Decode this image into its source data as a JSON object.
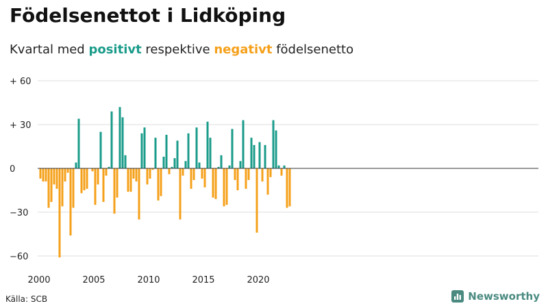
{
  "header": {
    "title": "Födelsenettot i Lidköping",
    "subtitle_prefix": "Kvartal med ",
    "subtitle_positive": "positivt",
    "subtitle_middle": " respektive ",
    "subtitle_negative": "negativt",
    "subtitle_suffix": " födelsenetto"
  },
  "footer": {
    "source": "Källa: SCB",
    "brand": "Newsworthy",
    "brand_icon": "bar-chart-logo-icon"
  },
  "colors": {
    "positive": "#1a9b8a",
    "negative": "#f5a01a",
    "grid": "#dddddd",
    "zero_line": "#333333",
    "brand": "#4a8a80"
  },
  "chart_data": {
    "type": "bar",
    "ylim": [
      -64,
      64
    ],
    "y_ticks": [
      {
        "value": 60,
        "label": "+ 60"
      },
      {
        "value": 30,
        "label": "+ 30"
      },
      {
        "value": 0,
        "label": "0"
      },
      {
        "value": -30,
        "label": "−30"
      },
      {
        "value": -60,
        "label": "−60"
      }
    ],
    "x_ticks": [
      {
        "value": 2000,
        "label": "2000"
      },
      {
        "value": 2005,
        "label": "2005"
      },
      {
        "value": 2010,
        "label": "2010"
      },
      {
        "value": 2015,
        "label": "2015"
      },
      {
        "value": 2020,
        "label": "2020"
      }
    ],
    "x_start": "2000",
    "grid": true,
    "values": [
      -7,
      -9,
      -9,
      -27,
      -23,
      -11,
      -14,
      -61,
      -26,
      -9,
      -3,
      -46,
      -27,
      4,
      34,
      -17,
      -15,
      -14,
      0,
      -2,
      -25,
      -11,
      25,
      -23,
      -5,
      1,
      39,
      -31,
      -20,
      42,
      35,
      9,
      -16,
      -16,
      -7,
      -9,
      -35,
      24,
      28,
      -11,
      -7,
      -1,
      21,
      -22,
      -19,
      8,
      23,
      -4,
      1,
      7,
      19,
      -35,
      -5,
      5,
      24,
      -14,
      -8,
      28,
      4,
      -7,
      -13,
      32,
      21,
      -20,
      -21,
      1,
      9,
      -26,
      -25,
      2,
      27,
      -8,
      -15,
      5,
      33,
      -14,
      -8,
      21,
      16,
      -44,
      18,
      -9,
      16,
      -18,
      -6,
      33,
      26,
      2,
      -5,
      2,
      -27,
      -26
    ]
  }
}
